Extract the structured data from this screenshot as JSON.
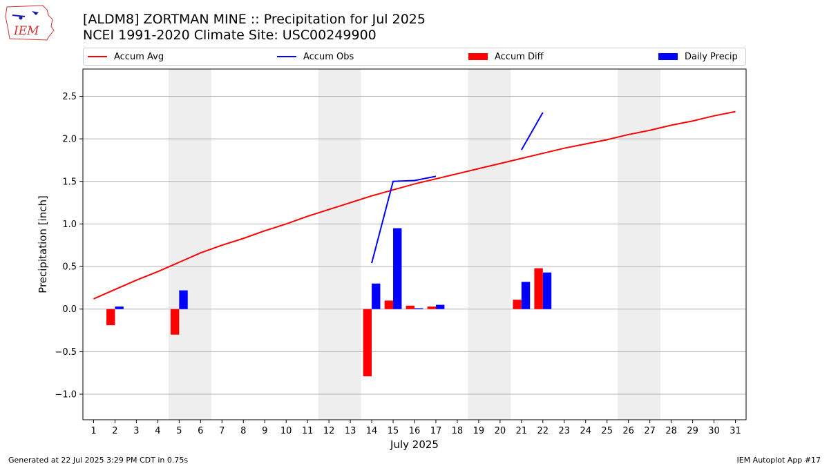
{
  "header": {
    "title_line1": "[ALDM8] ZORTMAN MINE :: Precipitation for Jul 2025",
    "title_line2": "NCEI 1991-2020 Climate Site: USC00249900"
  },
  "logo": {
    "text": "IEM",
    "icon": "iem-state-outline-logo"
  },
  "legend": {
    "items": [
      {
        "label": "Accum Avg",
        "kind": "line",
        "color": "#ff0000"
      },
      {
        "label": "Accum Obs",
        "kind": "line",
        "color": "#0000ff"
      },
      {
        "label": "Accum Diff",
        "kind": "bar",
        "color": "#ff0000"
      },
      {
        "label": "Daily Precip",
        "kind": "bar",
        "color": "#0000ff"
      }
    ]
  },
  "footer": {
    "left": "Generated at 22 Jul 2025 3:29 PM CDT in 0.75s",
    "right": "IEM Autoplot App #17"
  },
  "chart_data": {
    "type": "bar",
    "xlabel": "July 2025",
    "ylabel": "Precipitation [inch]",
    "xlim": [
      0.5,
      31.5
    ],
    "ylim": [
      -1.3,
      2.82
    ],
    "yticks": [
      -1.0,
      -0.5,
      0.0,
      0.5,
      1.0,
      1.5,
      2.0,
      2.5
    ],
    "ytick_labels": [
      "−1.0",
      "−0.5",
      "0.0",
      "0.5",
      "1.0",
      "1.5",
      "2.0",
      "2.5"
    ],
    "xticks": [
      1,
      2,
      3,
      4,
      5,
      6,
      7,
      8,
      9,
      10,
      11,
      12,
      13,
      14,
      15,
      16,
      17,
      18,
      19,
      20,
      21,
      22,
      23,
      24,
      25,
      26,
      27,
      28,
      29,
      30,
      31
    ],
    "grid": "horizontal",
    "weekend_shading": [
      [
        4.5,
        6.5
      ],
      [
        11.5,
        13.5
      ],
      [
        18.5,
        20.5
      ],
      [
        25.5,
        27.5
      ]
    ],
    "shading_color": "#eeeeee",
    "colors": {
      "avg": "#ff0000",
      "obs": "#0000ff",
      "diff": "#ff0000",
      "daily": "#0000ff"
    },
    "accum_avg": {
      "x": [
        1,
        2,
        3,
        4,
        5,
        6,
        7,
        8,
        9,
        10,
        11,
        12,
        13,
        14,
        15,
        16,
        17,
        18,
        19,
        20,
        21,
        22,
        23,
        24,
        25,
        26,
        27,
        28,
        29,
        30,
        31
      ],
      "y": [
        0.12,
        0.23,
        0.34,
        0.44,
        0.55,
        0.66,
        0.75,
        0.83,
        0.92,
        1.0,
        1.09,
        1.17,
        1.25,
        1.33,
        1.4,
        1.47,
        1.53,
        1.59,
        1.65,
        1.71,
        1.77,
        1.83,
        1.89,
        1.94,
        1.99,
        2.05,
        2.1,
        2.16,
        2.21,
        2.27,
        2.32
      ]
    },
    "accum_obs_segments": [
      {
        "x": [
          14,
          15,
          16,
          17
        ],
        "y": [
          0.54,
          1.5,
          1.51,
          1.56
        ]
      },
      {
        "x": [
          21,
          22
        ],
        "y": [
          1.87,
          2.31
        ]
      }
    ],
    "accum_diff": {
      "x": [
        2,
        5,
        14,
        15,
        16,
        17,
        21,
        22
      ],
      "values": [
        -0.19,
        -0.3,
        -0.79,
        0.1,
        0.04,
        0.03,
        0.11,
        0.48
      ]
    },
    "daily_precip": {
      "x": [
        2,
        5,
        14,
        15,
        16,
        17,
        21,
        22
      ],
      "values": [
        0.03,
        0.22,
        0.3,
        0.95,
        0.01,
        0.05,
        0.32,
        0.43
      ]
    }
  }
}
